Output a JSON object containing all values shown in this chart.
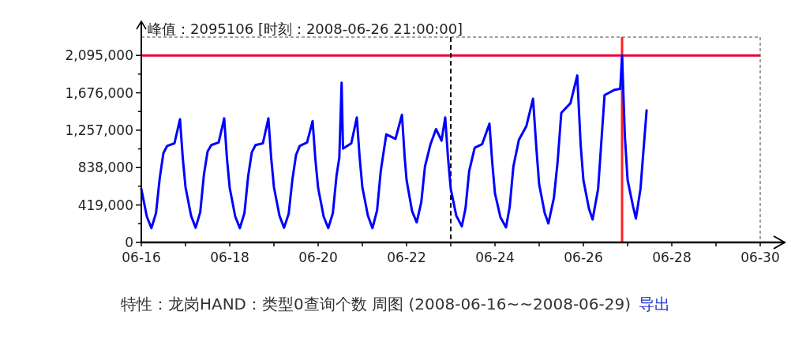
{
  "chart_data": {
    "type": "line",
    "title": "特性：龙岗HAND：类型0查询个数 周图 (2008-06-16~~2008-06-29)",
    "annotations": [
      "峰值：2095106 [时刻：2008-06-26 21:00:00]",
      "导出"
    ],
    "x": [
      "2008-06-16T00:00",
      "2008-06-16T03:00",
      "2008-06-16T05:30",
      "2008-06-16T08:00",
      "2008-06-16T10:00",
      "2008-06-16T12:00",
      "2008-06-16T14:00",
      "2008-06-16T18:00",
      "2008-06-16T21:00",
      "2008-06-16T22:30",
      "2008-06-17T00:00",
      "2008-06-17T03:00",
      "2008-06-17T05:30",
      "2008-06-17T08:00",
      "2008-06-17T10:00",
      "2008-06-17T12:00",
      "2008-06-17T14:00",
      "2008-06-17T18:00",
      "2008-06-17T21:00",
      "2008-06-17T22:30",
      "2008-06-18T00:00",
      "2008-06-18T03:00",
      "2008-06-18T05:30",
      "2008-06-18T08:00",
      "2008-06-18T10:00",
      "2008-06-18T12:00",
      "2008-06-18T14:00",
      "2008-06-18T18:00",
      "2008-06-18T21:00",
      "2008-06-18T22:30",
      "2008-06-19T00:00",
      "2008-06-19T03:00",
      "2008-06-19T05:30",
      "2008-06-19T08:00",
      "2008-06-19T10:00",
      "2008-06-19T12:00",
      "2008-06-19T14:00",
      "2008-06-19T18:00",
      "2008-06-19T21:00",
      "2008-06-19T22:30",
      "2008-06-20T00:00",
      "2008-06-20T03:00",
      "2008-06-20T05:30",
      "2008-06-20T08:00",
      "2008-06-20T10:00",
      "2008-06-20T11:30",
      "2008-06-20T12:45",
      "2008-06-20T13:30",
      "2008-06-20T18:00",
      "2008-06-20T21:00",
      "2008-06-20T22:30",
      "2008-06-21T00:00",
      "2008-06-21T03:00",
      "2008-06-21T05:30",
      "2008-06-21T08:00",
      "2008-06-21T10:00",
      "2008-06-21T13:00",
      "2008-06-21T18:00",
      "2008-06-21T21:30",
      "2008-06-21T23:00",
      "2008-06-22T00:00",
      "2008-06-22T03:00",
      "2008-06-22T05:30",
      "2008-06-22T08:00",
      "2008-06-22T10:00",
      "2008-06-22T13:00",
      "2008-06-22T16:00",
      "2008-06-22T19:00",
      "2008-06-22T21:00",
      "2008-06-22T22:30",
      "2008-06-23T00:00",
      "2008-06-23T03:00",
      "2008-06-23T06:00",
      "2008-06-23T08:00",
      "2008-06-23T10:00",
      "2008-06-23T13:00",
      "2008-06-23T17:00",
      "2008-06-23T21:00",
      "2008-06-23T22:30",
      "2008-06-24T00:00",
      "2008-06-24T03:00",
      "2008-06-24T06:00",
      "2008-06-24T08:00",
      "2008-06-24T10:00",
      "2008-06-24T13:00",
      "2008-06-24T17:00",
      "2008-06-24T20:40",
      "2008-06-24T22:30",
      "2008-06-25T00:00",
      "2008-06-25T03:00",
      "2008-06-25T05:00",
      "2008-06-25T08:00",
      "2008-06-25T10:00",
      "2008-06-25T12:00",
      "2008-06-25T17:00",
      "2008-06-25T20:40",
      "2008-06-25T22:30",
      "2008-06-26T00:00",
      "2008-06-26T03:00",
      "2008-06-26T05:00",
      "2008-06-26T08:00",
      "2008-06-26T11:30",
      "2008-06-26T17:00",
      "2008-06-26T20:00",
      "2008-06-26T21:00",
      "2008-06-26T22:30",
      "2008-06-27T00:00",
      "2008-06-27T03:00",
      "2008-06-27T04:30",
      "2008-06-27T07:00",
      "2008-06-27T10:20"
    ],
    "series": [
      {
        "color": "#0000ff",
        "values": [
          600000,
          290000,
          160000,
          330000,
          720000,
          1000000,
          1080000,
          1110000,
          1380000,
          950000,
          620000,
          300000,
          165000,
          340000,
          760000,
          1020000,
          1090000,
          1120000,
          1390000,
          940000,
          610000,
          290000,
          160000,
          330000,
          740000,
          1010000,
          1090000,
          1110000,
          1390000,
          950000,
          620000,
          300000,
          165000,
          320000,
          700000,
          980000,
          1080000,
          1120000,
          1360000,
          930000,
          610000,
          290000,
          160000,
          330000,
          750000,
          950000,
          1790000,
          1050000,
          1110000,
          1400000,
          960000,
          620000,
          300000,
          160000,
          360000,
          800000,
          1210000,
          1160000,
          1430000,
          950000,
          700000,
          350000,
          225000,
          450000,
          850000,
          1100000,
          1270000,
          1140000,
          1400000,
          950000,
          600000,
          300000,
          180000,
          380000,
          800000,
          1060000,
          1100000,
          1330000,
          900000,
          550000,
          280000,
          168000,
          400000,
          850000,
          1150000,
          1300000,
          1610000,
          1050000,
          650000,
          330000,
          212000,
          500000,
          900000,
          1450000,
          1560000,
          1870000,
          1100000,
          700000,
          380000,
          256000,
          600000,
          1650000,
          1710000,
          1720000,
          2095106,
          1200000,
          700000,
          400000,
          268000,
          600000,
          1480000
        ]
      }
    ],
    "xlim": [
      "2008-06-16",
      "2008-06-30"
    ],
    "xticks": [
      {
        "value": "2008-06-16",
        "label": "06-16"
      },
      {
        "value": "2008-06-17",
        "label": null
      },
      {
        "value": "2008-06-18",
        "label": "06-18"
      },
      {
        "value": "2008-06-19",
        "label": null
      },
      {
        "value": "2008-06-20",
        "label": "06-20"
      },
      {
        "value": "2008-06-21",
        "label": null
      },
      {
        "value": "2008-06-22",
        "label": "06-22"
      },
      {
        "value": "2008-06-23",
        "label": null
      },
      {
        "value": "2008-06-24",
        "label": "06-24"
      },
      {
        "value": "2008-06-25",
        "label": null
      },
      {
        "value": "2008-06-26",
        "label": "06-26"
      },
      {
        "value": "2008-06-27",
        "label": null
      },
      {
        "value": "2008-06-28",
        "label": "06-28"
      },
      {
        "value": "2008-06-29",
        "label": null
      },
      {
        "value": "2008-06-30",
        "label": "06-30"
      }
    ],
    "ylim": [
      0,
      2300000
    ],
    "yticks": [
      0,
      {
        "value": 209500,
        "label": null
      },
      {
        "value": 419000,
        "label": "419,000"
      },
      {
        "value": 628500,
        "label": null
      },
      {
        "value": 838000,
        "label": "838,000"
      },
      {
        "value": 1047500,
        "label": null
      },
      {
        "value": 1257000,
        "label": "1,257,000"
      },
      {
        "value": 1466500,
        "label": null
      },
      {
        "value": 1676000,
        "label": "1,676,000"
      },
      {
        "value": 1885500,
        "label": null
      },
      {
        "value": 2095000,
        "label": "2,095,000"
      }
    ],
    "ref_lines": [
      {
        "axis": "y",
        "value": 2095106,
        "color": "#e8003a"
      },
      {
        "axis": "x",
        "value": "2008-06-26T21:00",
        "color": "#ff2020"
      },
      {
        "axis": "x",
        "value": "2008-06-23",
        "color": "#000000",
        "line_style": "dashed"
      }
    ],
    "grid": false,
    "marker": "none",
    "line_style": "solid"
  }
}
